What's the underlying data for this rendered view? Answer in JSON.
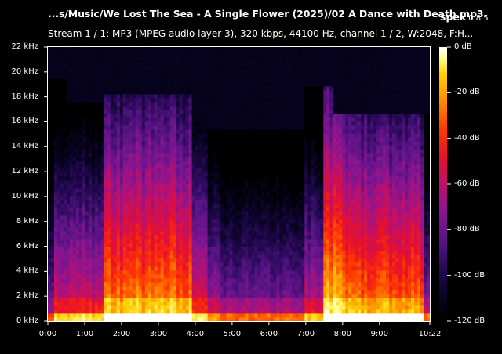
{
  "header": {
    "file_title": "...s/Music/We Lost The Sea - A Single Flower (2025)/02 A Dance with Death.mp3",
    "app_name": "spek",
    "app_version": "0.8.5",
    "stream_info": "Stream 1 / 1: MP3 (MPEG audio layer 3), 320 kbps, 44100 Hz, channel 1 / 2, W:2048, F:H..."
  },
  "axes": {
    "frequency_ticks": [
      "0 kHz",
      "2 kHz",
      "4 kHz",
      "6 kHz",
      "8 kHz",
      "10 kHz",
      "12 kHz",
      "14 kHz",
      "16 kHz",
      "18 kHz",
      "20 kHz",
      "22 kHz"
    ],
    "time_ticks": [
      "0:00",
      "1:00",
      "2:00",
      "3:00",
      "4:00",
      "5:00",
      "6:00",
      "7:00",
      "8:00",
      "9:00",
      "10:22"
    ],
    "db_ticks": [
      "0 dB",
      "-20 dB",
      "-40 dB",
      "-60 dB",
      "-80 dB",
      "-100 dB",
      "-120 dB"
    ]
  },
  "colors": {
    "background": "#000000",
    "text": "#ffffff",
    "palette": [
      "#000000",
      "#0a0428",
      "#2a0a5a",
      "#5b1487",
      "#8a1590",
      "#c0106a",
      "#e8102a",
      "#ff3a00",
      "#ff8a00",
      "#ffd000",
      "#ffff90",
      "#ffffff"
    ]
  },
  "spectrogram": {
    "duration_seconds": 622,
    "max_frequency_khz": 22,
    "db_range": [
      -120,
      0
    ]
  }
}
